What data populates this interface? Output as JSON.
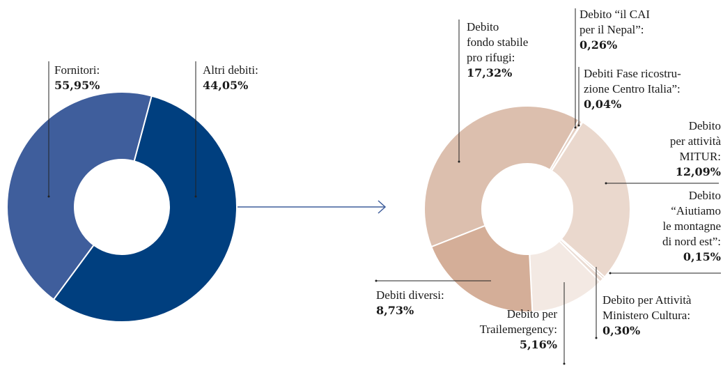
{
  "chart_data": [
    {
      "type": "pie",
      "donut": true,
      "categories": [
        "Fornitori:",
        "Altri debiti:"
      ],
      "values": [
        55.95,
        44.05
      ],
      "value_labels": [
        "55,95%",
        "44,05%"
      ],
      "colors": [
        "#003f7f",
        "#3f5e9c"
      ]
    },
    {
      "type": "pie",
      "donut": true,
      "categories": [
        "Debito\nfondo stabile\npro rifugi:",
        "Debito “il CAI\nper il Nepal”:",
        "Debiti Fase ricostru-\nzione Centro Italia”:",
        "Debito\nper attività\nMITUR:",
        "Debito\n“Aiutiamo\nle montagne\ndi nord est”:",
        "Debito per Attività\nMinistero Cultura:",
        "Debito per\nTrailemergency:",
        "Debiti diversi:"
      ],
      "values": [
        17.32,
        0.26,
        0.04,
        12.09,
        0.15,
        0.3,
        5.16,
        8.73
      ],
      "value_labels": [
        "17,32%",
        "0,26%",
        "0,04%",
        "12,09%",
        "0,15%",
        "0,30%",
        "5,16%",
        "8,73%"
      ],
      "colors": [
        "#dcbfae",
        "#e4cfc2",
        "#d9bcaa",
        "#ead8cd",
        "#e2cbbd",
        "#eadbd2",
        "#f3e9e3",
        "#d4ae98"
      ]
    }
  ]
}
